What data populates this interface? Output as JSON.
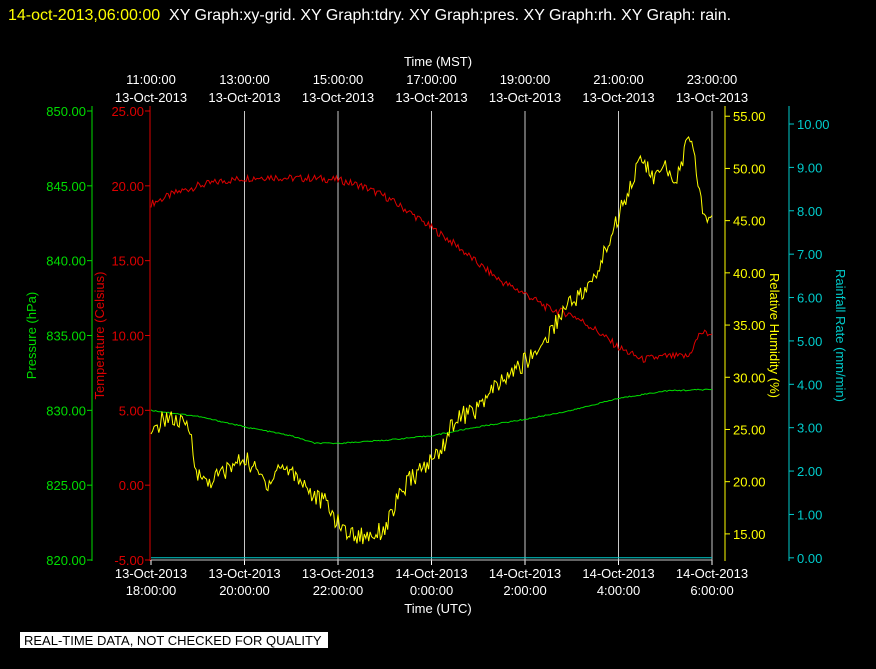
{
  "header": {
    "timestamp": "14-oct-2013,06:00:00",
    "graphs_text": "XY Graph:xy-grid.  XY Graph:tdry.  XY Graph:pres.  XY Graph:rh.  XY Graph: rain."
  },
  "footer_note": "REAL-TIME DATA, NOT CHECKED FOR QUALITY",
  "colors": {
    "background": "#000000",
    "pressure": "#00dd00",
    "temperature": "#dd0000",
    "humidity": "#ffff00",
    "rainfall": "#00cccc",
    "grid": "#c8c8c8",
    "text": "#ffffff"
  },
  "chart_data": {
    "type": "line",
    "grid": true,
    "x_top": {
      "label": "Time (MST)",
      "ticks": [
        {
          "time": "11:00:00",
          "date": "13-Oct-2013"
        },
        {
          "time": "13:00:00",
          "date": "13-Oct-2013"
        },
        {
          "time": "15:00:00",
          "date": "13-Oct-2013"
        },
        {
          "time": "17:00:00",
          "date": "13-Oct-2013"
        },
        {
          "time": "19:00:00",
          "date": "13-Oct-2013"
        },
        {
          "time": "21:00:00",
          "date": "13-Oct-2013"
        },
        {
          "time": "23:00:00",
          "date": "13-Oct-2013"
        }
      ]
    },
    "x_bottom": {
      "label": "Time (UTC)",
      "ticks": [
        {
          "date": "13-Oct-2013",
          "time": "18:00:00"
        },
        {
          "date": "13-Oct-2013",
          "time": "20:00:00"
        },
        {
          "date": "13-Oct-2013",
          "time": "22:00:00"
        },
        {
          "date": "14-Oct-2013",
          "time": "0:00:00"
        },
        {
          "date": "14-Oct-2013",
          "time": "2:00:00"
        },
        {
          "date": "14-Oct-2013",
          "time": "4:00:00"
        },
        {
          "date": "14-Oct-2013",
          "time": "6:00:00"
        }
      ]
    },
    "axes": {
      "pressure": {
        "label": "Pressure (hPa)",
        "ylim": [
          820,
          850
        ],
        "ticks": [
          "820.00",
          "825.00",
          "830.00",
          "835.00",
          "840.00",
          "845.00",
          "850.00"
        ]
      },
      "temperature": {
        "label": "Temperature (Celsius)",
        "ylim": [
          -5,
          25
        ],
        "ticks": [
          "-5.00",
          "0.00",
          "5.00",
          "10.00",
          "15.00",
          "20.00",
          "25.00"
        ]
      },
      "humidity": {
        "label": "Relative Humidity (%)",
        "ylim": [
          12.5,
          55.5
        ],
        "ticks": [
          "15.00",
          "20.00",
          "25.00",
          "30.00",
          "35.00",
          "40.00",
          "45.00",
          "50.00",
          "55.00"
        ]
      },
      "rainfall": {
        "label": "Rainfall Rate (mm/min)",
        "ylim": [
          -0.05,
          10.3
        ],
        "ticks": [
          "0.00",
          "1.00",
          "2.00",
          "3.00",
          "4.00",
          "5.00",
          "6.00",
          "7.00",
          "8.00",
          "9.00",
          "10.00"
        ]
      }
    },
    "series": [
      {
        "name": "Temperature",
        "axis": "temperature",
        "points": [
          [
            "13-Oct-2013 18:00",
            18.8
          ],
          [
            "13-Oct-2013 18:30",
            19.5
          ],
          [
            "13-Oct-2013 19:00",
            20.0
          ],
          [
            "13-Oct-2013 19:30",
            20.3
          ],
          [
            "13-Oct-2013 20:00",
            20.5
          ],
          [
            "13-Oct-2013 20:30",
            20.6
          ],
          [
            "13-Oct-2013 21:00",
            20.5
          ],
          [
            "13-Oct-2013 21:30",
            20.5
          ],
          [
            "13-Oct-2013 22:00",
            20.4
          ],
          [
            "13-Oct-2013 22:30",
            20.0
          ],
          [
            "13-Oct-2013 23:00",
            19.3
          ],
          [
            "13-Oct-2013 23:30",
            18.3
          ],
          [
            "14-Oct-2013 00:00",
            17.2
          ],
          [
            "14-Oct-2013 00:30",
            16.1
          ],
          [
            "14-Oct-2013 01:00",
            14.8
          ],
          [
            "14-Oct-2013 01:30",
            13.6
          ],
          [
            "14-Oct-2013 02:00",
            12.8
          ],
          [
            "14-Oct-2013 02:30",
            11.8
          ],
          [
            "14-Oct-2013 03:00",
            11.4
          ],
          [
            "14-Oct-2013 03:30",
            10.4
          ],
          [
            "14-Oct-2013 04:00",
            9.2
          ],
          [
            "14-Oct-2013 04:30",
            8.4
          ],
          [
            "14-Oct-2013 05:00",
            8.6
          ],
          [
            "14-Oct-2013 05:30",
            8.6
          ],
          [
            "14-Oct-2013 05:45",
            10.2
          ],
          [
            "14-Oct-2013 06:00",
            10.1
          ]
        ]
      },
      {
        "name": "Pressure",
        "axis": "pressure",
        "points": [
          [
            "13-Oct-2013 18:00",
            830.0
          ],
          [
            "13-Oct-2013 19:00",
            829.6
          ],
          [
            "13-Oct-2013 20:00",
            828.9
          ],
          [
            "13-Oct-2013 21:00",
            828.3
          ],
          [
            "13-Oct-2013 21:30",
            827.8
          ],
          [
            "13-Oct-2013 22:00",
            827.8
          ],
          [
            "13-Oct-2013 23:00",
            828.0
          ],
          [
            "14-Oct-2013 00:00",
            828.3
          ],
          [
            "14-Oct-2013 01:00",
            828.9
          ],
          [
            "14-Oct-2013 02:00",
            829.4
          ],
          [
            "14-Oct-2013 03:00",
            830.0
          ],
          [
            "14-Oct-2013 04:00",
            830.8
          ],
          [
            "14-Oct-2013 05:00",
            831.3
          ],
          [
            "14-Oct-2013 06:00",
            831.4
          ]
        ]
      },
      {
        "name": "Relative Humidity",
        "axis": "humidity",
        "points": [
          [
            "13-Oct-2013 18:00",
            24.0
          ],
          [
            "13-Oct-2013 18:10",
            25.5
          ],
          [
            "13-Oct-2013 18:20",
            26.3
          ],
          [
            "13-Oct-2013 18:30",
            25.8
          ],
          [
            "13-Oct-2013 18:40",
            25.5
          ],
          [
            "13-Oct-2013 18:50",
            25.0
          ],
          [
            "13-Oct-2013 19:00",
            20.5
          ],
          [
            "13-Oct-2013 19:15",
            20.0
          ],
          [
            "13-Oct-2013 19:30",
            20.8
          ],
          [
            "13-Oct-2013 19:45",
            21.5
          ],
          [
            "13-Oct-2013 20:00",
            22.3
          ],
          [
            "13-Oct-2013 20:15",
            21.0
          ],
          [
            "13-Oct-2013 20:30",
            19.8
          ],
          [
            "13-Oct-2013 20:45",
            21.5
          ],
          [
            "13-Oct-2013 21:00",
            21.0
          ],
          [
            "13-Oct-2013 21:15",
            20.0
          ],
          [
            "13-Oct-2013 21:30",
            18.5
          ],
          [
            "13-Oct-2013 21:45",
            18.0
          ],
          [
            "13-Oct-2013 22:00",
            16.0
          ],
          [
            "13-Oct-2013 22:15",
            15.0
          ],
          [
            "13-Oct-2013 22:30",
            14.8
          ],
          [
            "13-Oct-2013 22:45",
            15.0
          ],
          [
            "13-Oct-2013 23:00",
            15.5
          ],
          [
            "13-Oct-2013 23:15",
            18.0
          ],
          [
            "13-Oct-2013 23:30",
            20.0
          ],
          [
            "13-Oct-2013 23:45",
            21.0
          ],
          [
            "14-Oct-2013 00:00",
            22.0
          ],
          [
            "14-Oct-2013 00:15",
            23.5
          ],
          [
            "14-Oct-2013 00:30",
            26.0
          ],
          [
            "14-Oct-2013 00:45",
            26.5
          ],
          [
            "14-Oct-2013 01:00",
            27.0
          ],
          [
            "14-Oct-2013 01:15",
            28.5
          ],
          [
            "14-Oct-2013 01:30",
            29.5
          ],
          [
            "14-Oct-2013 01:45",
            30.5
          ],
          [
            "14-Oct-2013 02:00",
            31.5
          ],
          [
            "14-Oct-2013 02:15",
            32.5
          ],
          [
            "14-Oct-2013 02:30",
            34.0
          ],
          [
            "14-Oct-2013 02:45",
            36.0
          ],
          [
            "14-Oct-2013 03:00",
            37.5
          ],
          [
            "14-Oct-2013 03:15",
            38.0
          ],
          [
            "14-Oct-2013 03:30",
            39.5
          ],
          [
            "14-Oct-2013 03:45",
            42.5
          ],
          [
            "14-Oct-2013 04:00",
            45.5
          ],
          [
            "14-Oct-2013 04:15",
            48.5
          ],
          [
            "14-Oct-2013 04:30",
            51.0
          ],
          [
            "14-Oct-2013 04:45",
            49.0
          ],
          [
            "14-Oct-2013 05:00",
            50.0
          ],
          [
            "14-Oct-2013 05:15",
            49.0
          ],
          [
            "14-Oct-2013 05:30",
            53.0
          ],
          [
            "14-Oct-2013 05:40",
            50.0
          ],
          [
            "14-Oct-2013 05:50",
            45.0
          ],
          [
            "14-Oct-2013 06:00",
            45.5
          ]
        ]
      },
      {
        "name": "Rainfall Rate",
        "axis": "rainfall",
        "points": [
          [
            "13-Oct-2013 18:00",
            0.0
          ],
          [
            "14-Oct-2013 06:00",
            0.0
          ]
        ]
      }
    ]
  }
}
